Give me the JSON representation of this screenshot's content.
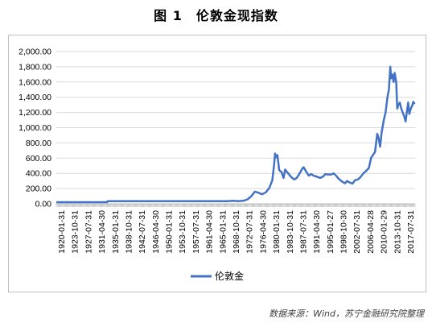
{
  "chart_data": {
    "type": "line",
    "title": "图 1　伦敦金现指数",
    "source": "数据来源：Wind，苏宁金融研究院整理",
    "ylim": [
      0,
      2000
    ],
    "yticks": [
      "0.00",
      "200.00",
      "400.00",
      "600.00",
      "800.00",
      "1,000.00",
      "1,200.00",
      "1,400.00",
      "1,600.00",
      "1,800.00",
      "2,000.00"
    ],
    "xticks": [
      "1920-01-31",
      "1923-10-31",
      "1927-07-31",
      "1931-04-30",
      "1935-01-31",
      "1938-10-31",
      "1942-07-31",
      "1946-04-30",
      "1950-01-31",
      "1953-10-31",
      "1957-07-31",
      "1961-04-30",
      "1965-01-31",
      "1968-10-31",
      "1972-07-31",
      "1976-04-30",
      "1980-01-31",
      "1983-10-31",
      "1987-07-31",
      "1991-04-30",
      "1995-01-27",
      "1998-10-30",
      "2002-07-31",
      "2006-04-28",
      "2010-01-29",
      "2013-10-31",
      "2017-07-31"
    ],
    "grid": true,
    "legend": "bottom",
    "series": [
      {
        "name": "伦敦金",
        "color": "#4472c4",
        "x": [
          1920.0,
          1934.0,
          1934.1,
          1967.0,
          1968.5,
          1970.0,
          1971.5,
          1972.5,
          1973.5,
          1974.5,
          1975.5,
          1976.5,
          1977.5,
          1978.5,
          1979.3,
          1979.8,
          1980.05,
          1980.3,
          1980.7,
          1981.2,
          1981.8,
          1982.4,
          1982.8,
          1983.3,
          1983.8,
          1984.5,
          1985.3,
          1986.0,
          1986.8,
          1987.5,
          1987.9,
          1988.5,
          1989.3,
          1990.0,
          1990.6,
          1991.3,
          1992.5,
          1993.3,
          1993.8,
          1994.5,
          1995.5,
          1996.1,
          1996.8,
          1997.5,
          1998.5,
          1999.3,
          1999.8,
          2000.5,
          2001.3,
          2002.0,
          2002.8,
          2003.5,
          2004.3,
          2005.0,
          2005.8,
          2006.4,
          2006.9,
          2007.5,
          2008.1,
          2008.5,
          2008.9,
          2009.3,
          2009.9,
          2010.4,
          2010.9,
          2011.3,
          2011.7,
          2011.9,
          2012.2,
          2012.6,
          2012.9,
          2013.3,
          2013.6,
          2013.9,
          2014.3,
          2014.7,
          2015.1,
          2015.5,
          2015.9,
          2016.3,
          2016.6,
          2016.9,
          2017.3,
          2017.7,
          2018.0,
          2018.4
        ],
        "values": [
          21,
          21,
          35,
          35,
          39,
          35,
          41,
          58,
          97,
          160,
          145,
          125,
          150,
          210,
          310,
          520,
          660,
          610,
          640,
          440,
          420,
          340,
          450,
          420,
          390,
          350,
          320,
          340,
          400,
          460,
          480,
          430,
          370,
          390,
          370,
          360,
          340,
          360,
          390,
          385,
          385,
          400,
          370,
          330,
          290,
          270,
          300,
          280,
          265,
          310,
          320,
          350,
          400,
          430,
          470,
          600,
          640,
          680,
          920,
          860,
          750,
          930,
          1100,
          1200,
          1400,
          1500,
          1800,
          1650,
          1700,
          1600,
          1720,
          1600,
          1250,
          1300,
          1330,
          1250,
          1200,
          1150,
          1080,
          1230,
          1330,
          1180,
          1250,
          1290,
          1340,
          1310
        ]
      }
    ]
  }
}
